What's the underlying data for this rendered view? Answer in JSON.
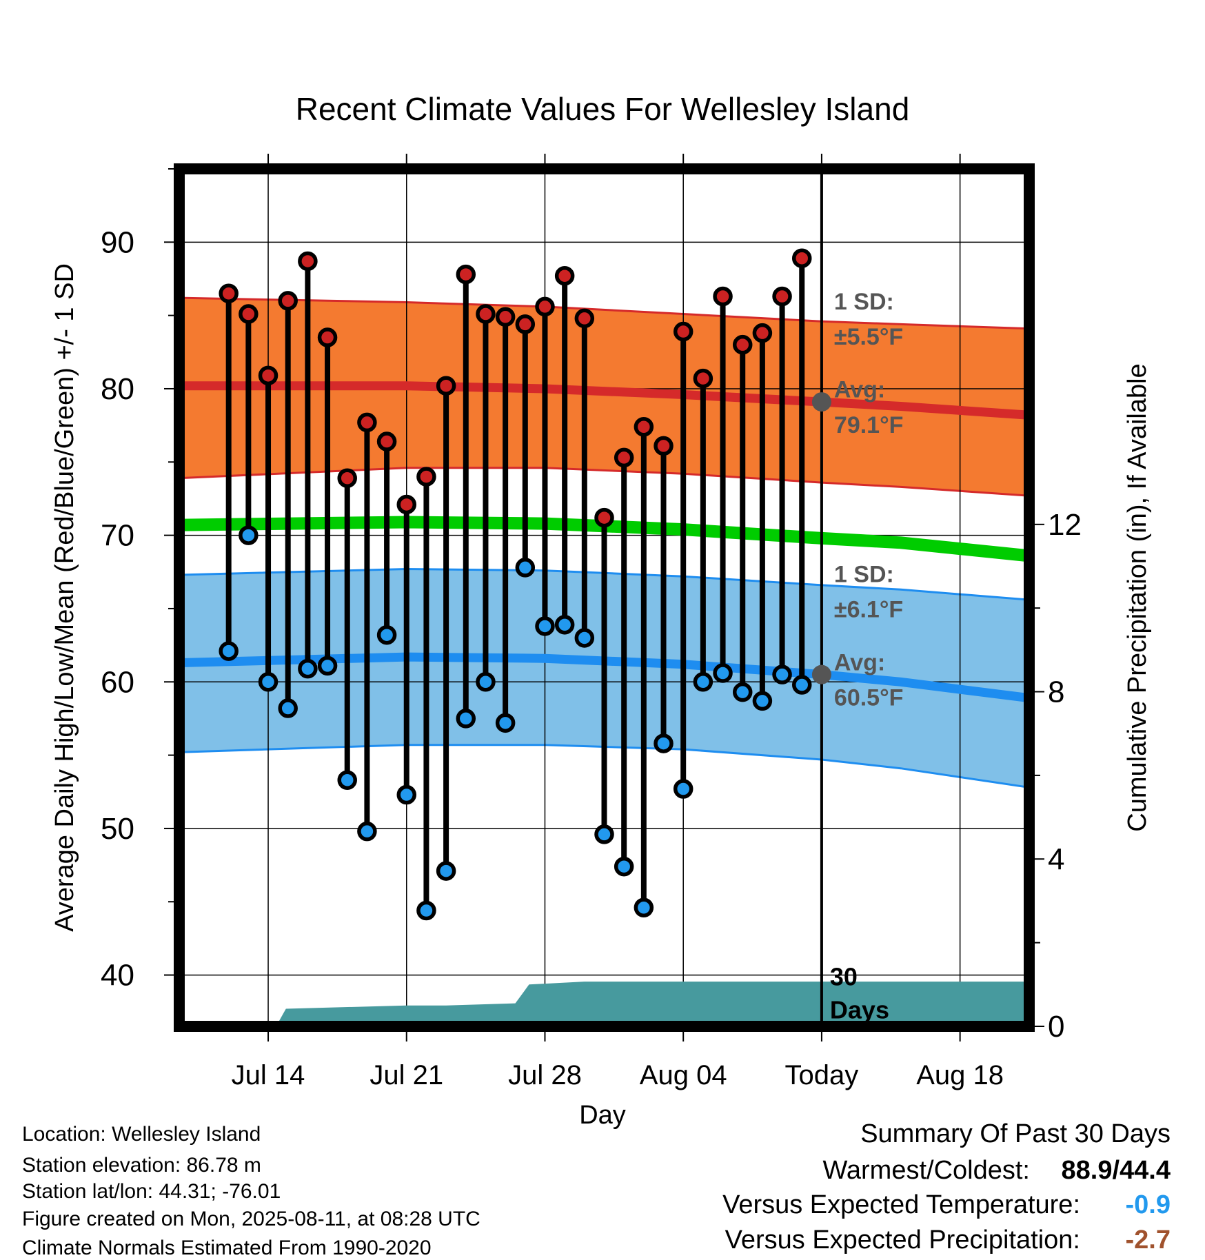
{
  "chart_data": {
    "type": "line",
    "title": "Recent Climate Values For Wellesley Island",
    "xlabel": "Day",
    "ylabel": "Average Daily High/Low/Mean (Red/Blue/Green) +/- 1 SD",
    "y2label": "Cumulative Precipitation (in), If Available",
    "ylim": [
      36.5,
      95
    ],
    "y2lim": [
      0,
      20.5
    ],
    "yticks": [
      40,
      50,
      60,
      70,
      80,
      90
    ],
    "y2ticks": [
      0,
      4,
      8,
      12
    ],
    "x_range_days": [
      -32.5,
      10.5
    ],
    "xticks": [
      {
        "day": -28,
        "label": "Jul 14"
      },
      {
        "day": -21,
        "label": "Jul 21"
      },
      {
        "day": -14,
        "label": "Jul 28"
      },
      {
        "day": -7,
        "label": "Aug 04"
      },
      {
        "day": 0,
        "label": "Today"
      },
      {
        "day": 7,
        "label": "Aug 18"
      }
    ],
    "grid": true,
    "today_marker_label": "30 Days",
    "observed_days": [
      -30,
      -29,
      -28,
      -27,
      -26,
      -25,
      -24,
      -23,
      -22,
      -21,
      -20,
      -19,
      -18,
      -17,
      -16,
      -15,
      -14,
      -13,
      -12,
      -11,
      -10,
      -9,
      -8,
      -7,
      -6,
      -5,
      -4,
      -3,
      -2,
      -1
    ],
    "observed_high": [
      86.5,
      85.1,
      80.9,
      86.0,
      88.7,
      83.5,
      73.9,
      77.7,
      76.4,
      72.1,
      74.0,
      80.2,
      87.8,
      85.1,
      84.9,
      84.4,
      85.6,
      87.7,
      84.8,
      71.2,
      75.3,
      77.4,
      76.1,
      83.9,
      80.7,
      86.3,
      83.0,
      83.8,
      86.3,
      88.9
    ],
    "observed_low": [
      62.1,
      70.0,
      60.0,
      58.2,
      60.9,
      61.1,
      53.3,
      49.8,
      63.2,
      52.3,
      44.4,
      47.1,
      57.5,
      60.0,
      57.2,
      67.8,
      63.8,
      63.9,
      63.0,
      49.6,
      47.4,
      44.6,
      55.8,
      52.7,
      60.0,
      60.6,
      59.3,
      58.7,
      60.5,
      59.8
    ],
    "normals": {
      "days": [
        -32.5,
        -21,
        -14,
        -7,
        0,
        4,
        10.5
      ],
      "high_avg": [
        80.2,
        80.2,
        80.0,
        79.6,
        79.1,
        78.8,
        78.2
      ],
      "high_sd_upper": [
        86.2,
        85.9,
        85.6,
        85.1,
        84.6,
        84.4,
        84.1
      ],
      "high_sd_lower": [
        73.9,
        74.6,
        74.6,
        74.2,
        73.6,
        73.3,
        72.7
      ],
      "low_avg": [
        61.3,
        61.7,
        61.6,
        61.2,
        60.5,
        60.0,
        58.9
      ],
      "low_sd_upper": [
        67.3,
        67.7,
        67.6,
        67.2,
        66.6,
        66.3,
        65.6
      ],
      "low_sd_lower": [
        55.2,
        55.7,
        55.7,
        55.4,
        54.7,
        54.1,
        52.8
      ],
      "mean_avg": [
        70.7,
        70.9,
        70.8,
        70.4,
        69.8,
        69.5,
        68.6
      ]
    },
    "precip_cumulative": {
      "days": [
        -32.5,
        -28.5,
        -27.6,
        -27.1,
        -21,
        -19,
        -15.5,
        -14.8,
        -14,
        -12,
        -8,
        0,
        10.5
      ],
      "values": [
        0,
        0,
        0,
        0.42,
        0.5,
        0.5,
        0.55,
        1.0,
        1.02,
        1.07,
        1.07,
        1.07,
        1.07
      ]
    },
    "series": [
      {
        "name": "",
        "color": "#cc2222",
        "role": "observed high"
      },
      {
        "name": "",
        "color": "#2299ee",
        "role": "observed low"
      }
    ],
    "colors": {
      "high_band": "#f47a30",
      "high_line": "#d52a2a",
      "low_band": "#80c0e8",
      "low_line": "#1e8df0",
      "mean_line": "#00cc00",
      "precip_fill": "#479a9e",
      "annotation_gray": "#555555",
      "above": "#a0522d",
      "below": "#2299ee"
    },
    "annotations": {
      "high_sd_line1": "1 SD:",
      "high_sd_line2": "±5.5°F",
      "high_avg_line1": "Avg:",
      "high_avg_line2": "79.1°F",
      "high_avg_value": 79.1,
      "low_sd_line1": "1 SD:",
      "low_sd_line2": "±6.1°F",
      "low_avg_line1": "Avg:",
      "low_avg_line2": "60.5°F",
      "low_avg_value": 60.5,
      "days_line1": "30",
      "days_line2": "Days"
    }
  },
  "info": {
    "location": "Location: Wellesley Island",
    "elevation": "Station elevation: 86.78 m",
    "latlon": "Station lat/lon: 44.31; -76.01",
    "created": "Figure created on Mon, 2025-08-11, at 08:28 UTC",
    "normals": "Climate Normals Estimated From 1990-2020"
  },
  "summary": {
    "title": "Summary Of Past 30 Days",
    "warmest_label": "Warmest/Coldest:",
    "warmest_value": "88.9/44.4",
    "temp_label": "Versus Expected Temperature:",
    "temp_value": "-0.9",
    "precip_label": "Versus Expected Precipitation:",
    "precip_value": "-2.7"
  }
}
